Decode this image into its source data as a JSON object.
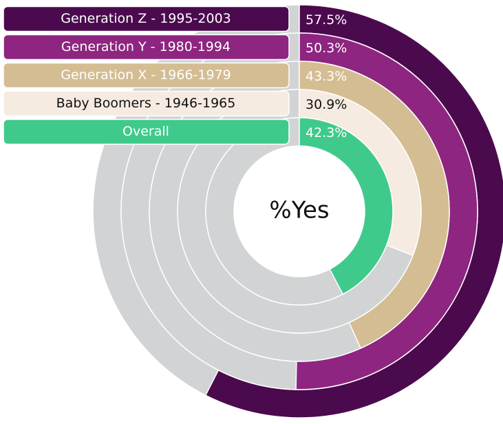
{
  "chart_data": {
    "type": "radial_bar",
    "center_label": "%Yes",
    "categories": [
      "Generation Z - 1995-2003",
      "Generation Y - 1980-1994",
      "Generation X - 1966-1979",
      "Baby Boomers - 1946-1965",
      "Overall"
    ],
    "values": [
      57.5,
      50.3,
      43.3,
      30.9,
      42.3
    ],
    "value_labels": [
      "57.5%",
      "50.3%",
      "43.3%",
      "30.9%",
      "42.3%"
    ],
    "colors": [
      "#4b0a4e",
      "#8e2580",
      "#d4bd92",
      "#f5ebe0",
      "#3fca8b"
    ],
    "text_colors": [
      "#ffffff",
      "#ffffff",
      "#ffffff",
      "#111111",
      "#ffffff"
    ],
    "track_color": "#d1d3d4",
    "ylim": [
      0,
      100
    ]
  }
}
